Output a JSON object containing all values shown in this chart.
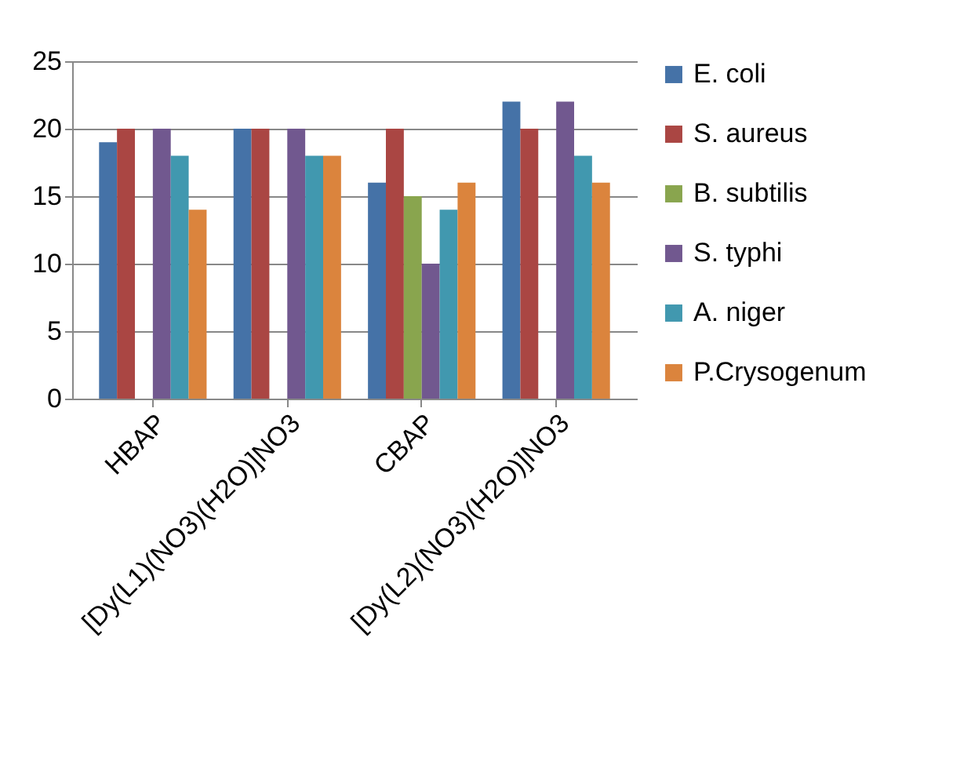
{
  "chart_data": {
    "type": "bar",
    "categories": [
      "HBAP",
      "[Dy(L1)(NO3)(H2O)]NO3",
      "CBAP",
      "[Dy(L2)(NO3)(H2O)]NO3"
    ],
    "series": [
      {
        "name": "E. coli",
        "color": "#4572a7",
        "values": [
          19,
          20,
          16,
          22
        ]
      },
      {
        "name": "S. aureus",
        "color": "#aa4643",
        "values": [
          20,
          20,
          20,
          20
        ]
      },
      {
        "name": "B. subtilis",
        "color": "#89a54e",
        "values": [
          null,
          null,
          15,
          null
        ]
      },
      {
        "name": "S. typhi",
        "color": "#71588f",
        "values": [
          20,
          20,
          10,
          22
        ]
      },
      {
        "name": "A. niger",
        "color": "#4198af",
        "values": [
          18,
          18,
          14,
          18
        ]
      },
      {
        "name": "P.Crysogenum",
        "color": "#db843d",
        "values": [
          14,
          18,
          16,
          16
        ]
      }
    ],
    "ylim": [
      0,
      25
    ],
    "yticks": [
      0,
      5,
      10,
      15,
      20,
      25
    ],
    "grid": "y",
    "legend": "right"
  }
}
